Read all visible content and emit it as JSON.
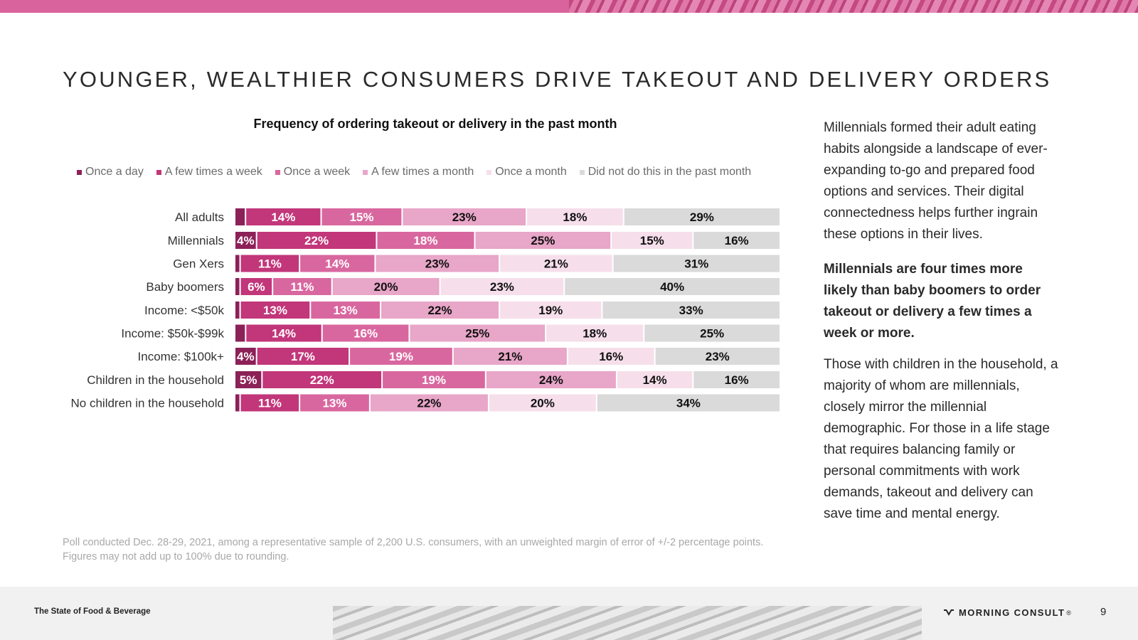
{
  "slide": {
    "title": "YOUNGER, WEALTHIER CONSUMERS DRIVE TAKEOUT AND DELIVERY ORDERS",
    "footnote": "Poll conducted Dec. 28-29, 2021, among a representative sample of 2,200 U.S. consumers, with an unweighted margin of error of +/-2 percentage points. Figures may not add up to 100% due to rounding."
  },
  "side_text": {
    "p1": "Millennials formed their adult eating habits alongside a landscape of ever-expanding to-go and prepared food options and services. Their digital connectedness helps further ingrain these options in their lives.",
    "p2": "Millennials are four times more likely than baby boomers to order takeout or delivery a few times a week or more.",
    "p3": "Those with children in the household, a majority of whom are millennials, closely mirror the millennial demographic. For those in a life stage that requires balancing family or personal commitments with work demands, takeout and delivery can save time and mental energy."
  },
  "footer": {
    "report_title": "The State of Food & Beverage",
    "brand": "MORNING CONSULT",
    "brand_mark": "®",
    "page_number": "9"
  },
  "chart_data": {
    "type": "bar",
    "orientation": "horizontal",
    "stacked": true,
    "percent": true,
    "title": "Frequency of ordering takeout or delivery in the past month",
    "legend_position": "top",
    "categories": [
      "All adults",
      "Millennials",
      "Gen Xers",
      "Baby boomers",
      "Income: <$50k",
      "Income: $50k-$99k",
      "Income: $100k+",
      "Children in the household",
      "No children in the household"
    ],
    "groups": [
      [
        0
      ],
      [
        1,
        2,
        3
      ],
      [
        4,
        5,
        6
      ],
      [
        7,
        8
      ]
    ],
    "series": [
      {
        "name": "Once a day",
        "color": "#8c2158",
        "label_color": "#ffffff",
        "values": [
          2,
          4,
          1,
          1,
          1,
          2,
          4,
          5,
          1
        ]
      },
      {
        "name": "A few times a week",
        "color": "#c2367a",
        "label_color": "#ffffff",
        "values": [
          14,
          22,
          11,
          6,
          13,
          14,
          17,
          22,
          11
        ]
      },
      {
        "name": "Once a week",
        "color": "#d9679f",
        "label_color": "#ffffff",
        "values": [
          15,
          18,
          14,
          11,
          13,
          16,
          19,
          19,
          13
        ]
      },
      {
        "name": "A few times a month",
        "color": "#e8a6c8",
        "label_color": "#111111",
        "values": [
          23,
          25,
          23,
          20,
          22,
          25,
          21,
          24,
          22
        ]
      },
      {
        "name": "Once a month",
        "color": "#f6dfea",
        "label_color": "#111111",
        "values": [
          18,
          15,
          21,
          23,
          19,
          18,
          16,
          14,
          20
        ]
      },
      {
        "name": "Did not do this in the past month",
        "color": "#dadada",
        "label_color": "#111111",
        "values": [
          29,
          16,
          31,
          40,
          33,
          25,
          23,
          16,
          34
        ]
      }
    ],
    "labeled": [
      [
        false,
        true,
        true,
        true,
        true,
        true
      ],
      [
        true,
        true,
        true,
        true,
        true,
        true
      ],
      [
        false,
        true,
        true,
        true,
        true,
        true
      ],
      [
        false,
        true,
        true,
        true,
        true,
        true
      ],
      [
        false,
        true,
        true,
        true,
        true,
        true
      ],
      [
        false,
        true,
        true,
        true,
        true,
        true
      ],
      [
        true,
        true,
        true,
        true,
        true,
        true
      ],
      [
        true,
        true,
        true,
        true,
        true,
        true
      ],
      [
        false,
        true,
        true,
        true,
        true,
        true
      ]
    ]
  }
}
